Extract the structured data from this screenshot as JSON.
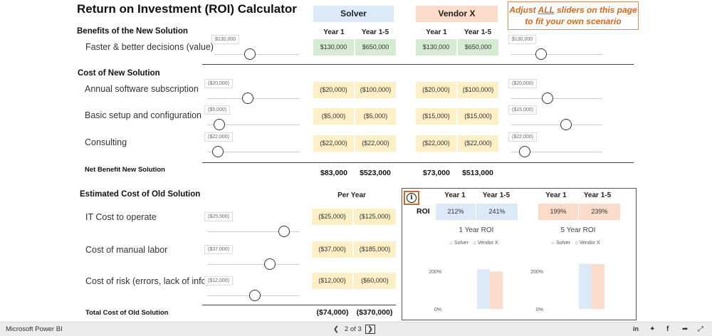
{
  "title": "Return on Investment (ROI) Calculator",
  "vendors": {
    "solver": "Solver",
    "vendor_x": "Vendor X"
  },
  "banner": {
    "line1_pre": "Adjust ",
    "line1_em": "ALL",
    "line1_post": " sliders on this page",
    "line2": "to fit your own scenario"
  },
  "columns": {
    "year1": "Year 1",
    "year1_5": "Year 1-5",
    "per_year": "Per Year"
  },
  "benefits": {
    "heading": "Benefits of the New Solution",
    "rows": [
      {
        "label": "Faster & better decisions (value)",
        "slider_left": "$130,000",
        "slider_left_level": 0.4,
        "solver_y1": "$130,000",
        "solver_y5": "$650,000",
        "vendor_y1": "$130,000",
        "vendor_y5": "$650,000",
        "slider_right": "$130,000",
        "slider_right_level": 0.3
      }
    ]
  },
  "cost_new": {
    "heading": "Cost of New Solution",
    "rows": [
      {
        "label": "Annual software subscription",
        "slider_left": "($20,000)",
        "slider_left_level": 0.43,
        "solver_y1": "($20,000)",
        "solver_y5": "($100,000)",
        "vendor_y1": "($20,000)",
        "vendor_y5": "($100,000)",
        "slider_right": "($20,000)",
        "slider_right_level": 0.38
      },
      {
        "label": "Basic setup and configuration",
        "slider_left": "($5,000)",
        "slider_left_level": 0.08,
        "solver_y1": "($5,000)",
        "solver_y5": "($5,000)",
        "vendor_y1": "($15,000)",
        "vendor_y5": "($15,000)",
        "slider_right": "($15,000)",
        "slider_right_level": 0.62
      },
      {
        "label": "Consulting",
        "slider_left": "($22,000)",
        "slider_left_level": 0.06,
        "solver_y1": "($22,000)",
        "solver_y5": "($22,000)",
        "vendor_y1": "($22,000)",
        "vendor_y5": "($22,000)",
        "slider_right": "($22,000)",
        "slider_right_level": 0.1
      }
    ],
    "net_label": "Net Benefit New Solution",
    "net": {
      "solver_y1": "$83,000",
      "solver_y5": "$523,000",
      "vendor_y1": "$73,000",
      "vendor_y5": "$513,000"
    }
  },
  "cost_old": {
    "heading": "Estimated Cost of Old Solution",
    "rows": [
      {
        "label": "IT Cost to operate",
        "slider": "($25,000)",
        "slider_level": 0.88,
        "y1": "($25,000)",
        "y5": "($125,000)"
      },
      {
        "label": "Cost of manual labor",
        "slider": "($37,000)",
        "slider_level": 0.7,
        "y1": "($37,000)",
        "y5": "($185,000)"
      },
      {
        "label": "Cost of risk (errors, lack of info)",
        "slider": "($12,000)",
        "slider_level": 0.52,
        "y1": "($12,000)",
        "y5": "($60,000)"
      }
    ],
    "total_label": "Total Cost of Old Solution",
    "total": {
      "y1": "($74,000)",
      "y5": "($370,000)"
    }
  },
  "roi": {
    "label": "ROI",
    "solver_y1": "212%",
    "solver_y5": "241%",
    "vendor_y1": "199%",
    "vendor_y5": "239%"
  },
  "chart_data": [
    {
      "type": "bar",
      "title": "1 Year ROI",
      "categories": [
        ""
      ],
      "series": [
        {
          "name": "Solver",
          "values": [
            212
          ]
        },
        {
          "name": "Vendor X",
          "values": [
            199
          ]
        }
      ],
      "yticks": [
        "200%",
        "0%"
      ],
      "ylim": [
        0,
        250
      ]
    },
    {
      "type": "bar",
      "title": "5 Year ROI",
      "categories": [
        ""
      ],
      "series": [
        {
          "name": "Solver",
          "values": [
            241
          ]
        },
        {
          "name": "Vendor X",
          "values": [
            239
          ]
        }
      ],
      "yticks": [
        "200%",
        "0%"
      ],
      "ylim": [
        0,
        250
      ]
    }
  ],
  "colors": {
    "solver": "#dce9f7",
    "vendor_x": "#fbdccb",
    "accent": "#d2691e"
  },
  "footer": {
    "brand": "Microsoft Power BI",
    "page": "2 of 3"
  }
}
